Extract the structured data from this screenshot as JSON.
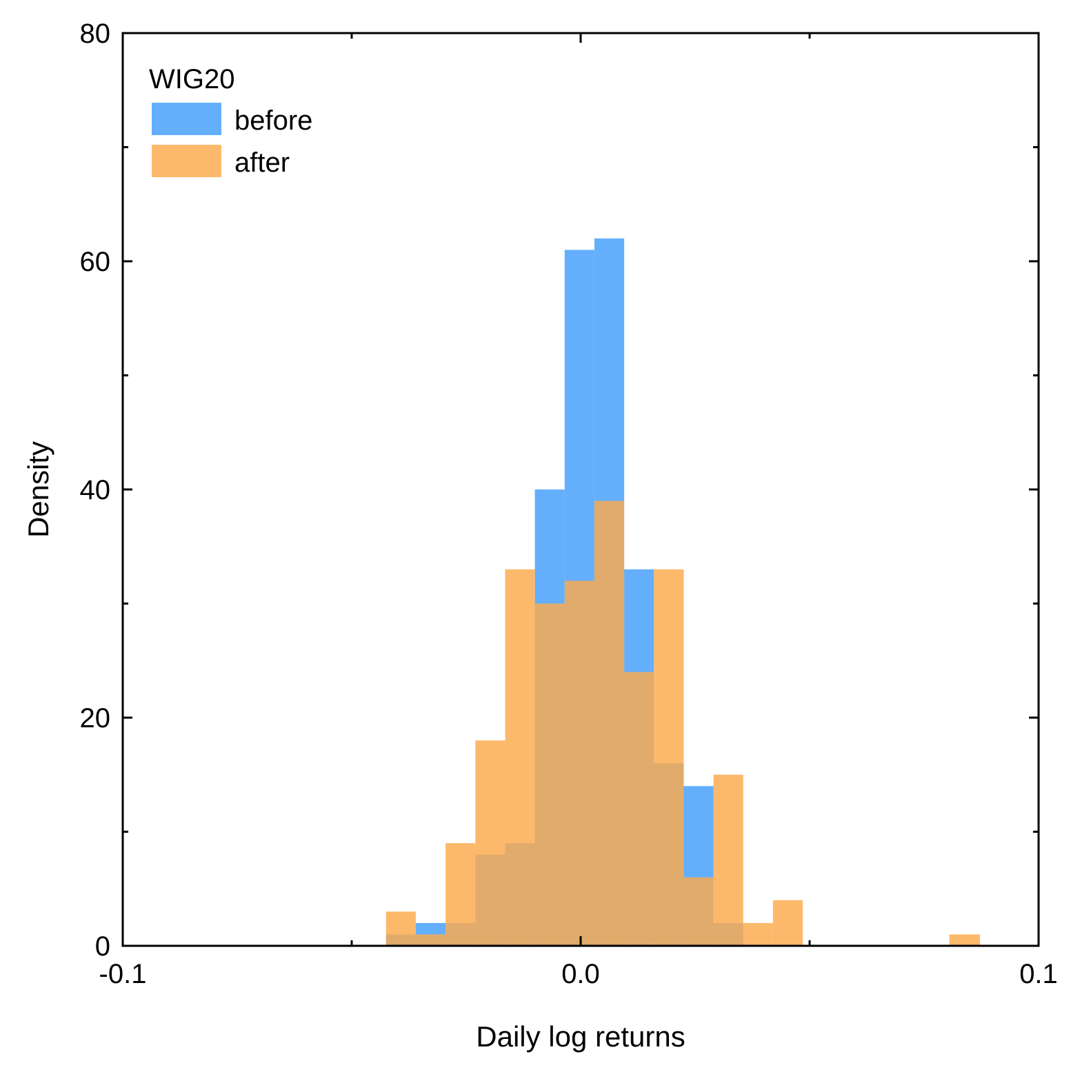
{
  "chart_data": {
    "type": "histogram",
    "title": "",
    "xlabel": "Daily log returns",
    "ylabel": "Density",
    "xlim": [
      -0.1,
      0.1
    ],
    "ylim": [
      0,
      80
    ],
    "xticks": [
      -0.1,
      0.0,
      0.1
    ],
    "xtick_labels": [
      "-0.1",
      "0.0",
      "0.1"
    ],
    "yticks": [
      0,
      20,
      40,
      60,
      80
    ],
    "ytick_labels": [
      "0",
      "20",
      "40",
      "60",
      "80"
    ],
    "minor_xticks": [
      -0.05,
      0.05
    ],
    "minor_yticks": [
      10,
      30,
      50,
      70
    ],
    "grid": false,
    "legend": {
      "title": "WIG20",
      "placement": "top-left",
      "entries": [
        "before",
        "after"
      ]
    },
    "series": [
      {
        "name": "before",
        "color": "#64AFFC",
        "opacity": 1,
        "bins": [
          {
            "start": -0.0425,
            "end": -0.036,
            "value": 1
          },
          {
            "start": -0.036,
            "end": -0.0295,
            "value": 2
          },
          {
            "start": -0.0295,
            "end": -0.023,
            "value": 2
          },
          {
            "start": -0.023,
            "end": -0.0165,
            "value": 8
          },
          {
            "start": -0.0165,
            "end": -0.01,
            "value": 9
          },
          {
            "start": -0.01,
            "end": -0.0035,
            "value": 40
          },
          {
            "start": -0.0035,
            "end": 0.003,
            "value": 61
          },
          {
            "start": 0.003,
            "end": 0.0095,
            "value": 62
          },
          {
            "start": 0.0095,
            "end": 0.016,
            "value": 33
          },
          {
            "start": 0.016,
            "end": 0.0225,
            "value": 16
          },
          {
            "start": 0.0225,
            "end": 0.029,
            "value": 14
          },
          {
            "start": 0.029,
            "end": 0.0355,
            "value": 2
          }
        ]
      },
      {
        "name": "after",
        "color": "#FDA94A",
        "opacity": 0.82,
        "bins": [
          {
            "start": -0.0425,
            "end": -0.036,
            "value": 3
          },
          {
            "start": -0.036,
            "end": -0.0295,
            "value": 1
          },
          {
            "start": -0.0295,
            "end": -0.023,
            "value": 9
          },
          {
            "start": -0.023,
            "end": -0.0165,
            "value": 18
          },
          {
            "start": -0.0165,
            "end": -0.01,
            "value": 33
          },
          {
            "start": -0.01,
            "end": -0.0035,
            "value": 30
          },
          {
            "start": -0.0035,
            "end": 0.003,
            "value": 32
          },
          {
            "start": 0.003,
            "end": 0.0095,
            "value": 39
          },
          {
            "start": 0.0095,
            "end": 0.016,
            "value": 24
          },
          {
            "start": 0.016,
            "end": 0.0225,
            "value": 33
          },
          {
            "start": 0.0225,
            "end": 0.029,
            "value": 6
          },
          {
            "start": 0.029,
            "end": 0.0355,
            "value": 15
          },
          {
            "start": 0.0355,
            "end": 0.042,
            "value": 2
          },
          {
            "start": 0.042,
            "end": 0.0485,
            "value": 4
          },
          {
            "start": 0.0805,
            "end": 0.0872,
            "value": 1
          }
        ]
      }
    ]
  }
}
